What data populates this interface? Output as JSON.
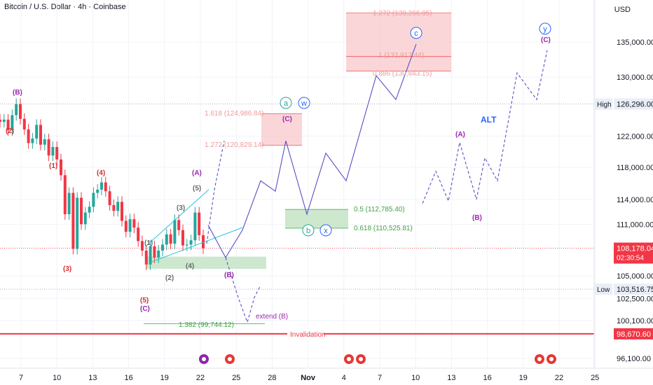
{
  "header": {
    "symbol_title": "Bitcoin / U.S. Dollar · 4h · Coinbase",
    "currency": "USD"
  },
  "chart_data": {
    "type": "candlestick",
    "title": "Bitcoin / U.S. Dollar · 4h · Coinbase",
    "xlabel": "",
    "ylabel": "USD",
    "scale": "log",
    "ylim": [
      95000,
      141000
    ],
    "x_ticks": [
      "7",
      "10",
      "13",
      "16",
      "19",
      "22",
      "25",
      "28",
      "Nov",
      "4",
      "7",
      "10",
      "13",
      "16",
      "19",
      "22",
      "25"
    ],
    "y_ticks": [
      "135,000.00",
      "130,000.00",
      "126,296.00",
      "122,000.00",
      "118,000.00",
      "114,000.00",
      "111,000.00",
      "108,178.04",
      "105,000.00",
      "103,516.75",
      "102,500.00",
      "100,100.00",
      "98,670.60",
      "96,100.00"
    ],
    "axis_labels": [
      {
        "label": "High",
        "value": "126,296.00",
        "price": 126296
      },
      {
        "label": "Low",
        "value": "103,516.75",
        "price": 103516.75
      },
      {
        "label": "",
        "value": "108,178.04",
        "price": 108178.04,
        "countdown": "02:30:54",
        "color": "#f23645"
      },
      {
        "label": "",
        "value": "98,670.60",
        "price": 98670.6,
        "color": "#f23645"
      }
    ],
    "price_path_close": [
      123900,
      124200,
      122800,
      124800,
      126296,
      124300,
      122900,
      121100,
      121700,
      123500,
      120900,
      121600,
      119500,
      120600,
      119000,
      117000,
      112200,
      114800,
      108100,
      114200,
      111000,
      112400,
      113100,
      114800,
      115200,
      116100,
      115000,
      113300,
      112600,
      113700,
      111400,
      110100,
      111600,
      110600,
      109000,
      107900,
      106300,
      108400,
      107100,
      107900,
      108600,
      109800,
      108700,
      111500,
      110300,
      108500,
      108600,
      109100,
      112400,
      109700,
      108178
    ],
    "wave_labels": [
      {
        "text": "(B)",
        "color": "#9c27b0"
      },
      {
        "text": "(2)",
        "color": "#d32f2f"
      },
      {
        "text": "(1)",
        "color": "#d32f2f"
      },
      {
        "text": "(4)",
        "color": "#d32f2f"
      },
      {
        "text": "(3)",
        "color": "#d32f2f"
      },
      {
        "text": "(5)",
        "color": "#d32f2f"
      },
      {
        "text": "(C)",
        "color": "#9c27b0"
      },
      {
        "text": "(1)",
        "color": "#6b6b6b"
      },
      {
        "text": "(2)",
        "color": "#6b6b6b"
      },
      {
        "text": "(3)",
        "color": "#6b6b6b"
      },
      {
        "text": "(4)",
        "color": "#6b6b6b"
      },
      {
        "text": "(5)",
        "color": "#6b6b6b"
      },
      {
        "text": "(A)",
        "color": "#9c27b0"
      },
      {
        "text": "(B)",
        "color": "#9c27b0"
      },
      {
        "text": "(C)",
        "color": "#9c27b0"
      },
      {
        "text": "(A)",
        "color": "#9c27b0"
      },
      {
        "text": "(B)",
        "color": "#9c27b0"
      },
      {
        "text": "(C)",
        "color": "#9c27b0"
      },
      {
        "text": "extend (B)",
        "color": "#9c27b0"
      },
      {
        "text": "ALT",
        "color": "#2962ff"
      }
    ],
    "circle_labels": [
      "a",
      "w",
      "b",
      "x",
      "c",
      "y"
    ],
    "fib_levels": [
      {
        "text": "1.272 (139,266.85)",
        "color": "#ef9a9a"
      },
      {
        "text": "1 (132,917.44)",
        "color": "#ef9a9a"
      },
      {
        "text": "0.886 (130,843.15)",
        "color": "#ef9a9a"
      },
      {
        "text": "1.618 (124,986.84)",
        "color": "#ef9a9a"
      },
      {
        "text": "1.272 (120,829.14)",
        "color": "#ef9a9a"
      },
      {
        "text": "0.5 (112,785.40)",
        "color": "#43a047"
      },
      {
        "text": "0.618 (110,525.81)",
        "color": "#43a047"
      },
      {
        "text": "1.382 (99,744.12)",
        "color": "#43a047"
      }
    ],
    "invalidation": {
      "text": "Invalidation",
      "price": 98670.6,
      "color": "#f23645"
    },
    "colors": {
      "up": "#26a69a",
      "down": "#f23645",
      "projection": "#5b4fc4",
      "target_zone": "#f8c8cc",
      "support_zone": "#c8e6c9",
      "wedge": "#26c6da"
    }
  }
}
